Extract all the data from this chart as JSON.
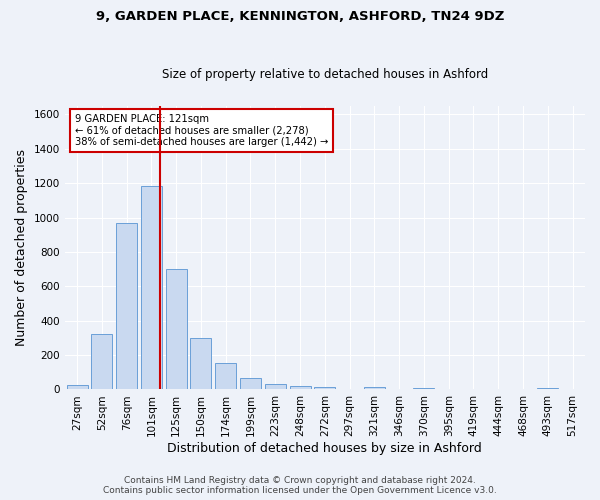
{
  "title1": "9, GARDEN PLACE, KENNINGTON, ASHFORD, TN24 9DZ",
  "title2": "Size of property relative to detached houses in Ashford",
  "xlabel": "Distribution of detached houses by size in Ashford",
  "ylabel": "Number of detached properties",
  "footnote1": "Contains HM Land Registry data © Crown copyright and database right 2024.",
  "footnote2": "Contains public sector information licensed under the Open Government Licence v3.0.",
  "annotation_line1": "9 GARDEN PLACE: 121sqm",
  "annotation_line2": "← 61% of detached houses are smaller (2,278)",
  "annotation_line3": "38% of semi-detached houses are larger (1,442) →",
  "bar_labels": [
    "27sqm",
    "52sqm",
    "76sqm",
    "101sqm",
    "125sqm",
    "150sqm",
    "174sqm",
    "199sqm",
    "223sqm",
    "248sqm",
    "272sqm",
    "297sqm",
    "321sqm",
    "346sqm",
    "370sqm",
    "395sqm",
    "419sqm",
    "444sqm",
    "468sqm",
    "493sqm",
    "517sqm"
  ],
  "bar_values": [
    25,
    320,
    970,
    1185,
    700,
    300,
    155,
    65,
    30,
    20,
    13,
    0,
    12,
    0,
    10,
    0,
    0,
    0,
    0,
    10,
    0
  ],
  "bar_color": "#c9d9f0",
  "bar_edge_color": "#6a9fd8",
  "property_line_color": "#cc0000",
  "property_line_xval": 3.333,
  "ylim": [
    0,
    1650
  ],
  "yticks": [
    0,
    200,
    400,
    600,
    800,
    1000,
    1200,
    1400,
    1600
  ],
  "bg_color": "#eef2f9",
  "grid_color": "#ffffff",
  "annotation_box_color": "#ffffff",
  "annotation_box_edge": "#cc0000",
  "title_fontsize": 9.5,
  "subtitle_fontsize": 8.5,
  "tick_fontsize": 7.5,
  "axis_label_fontsize": 9,
  "footnote_fontsize": 6.5
}
